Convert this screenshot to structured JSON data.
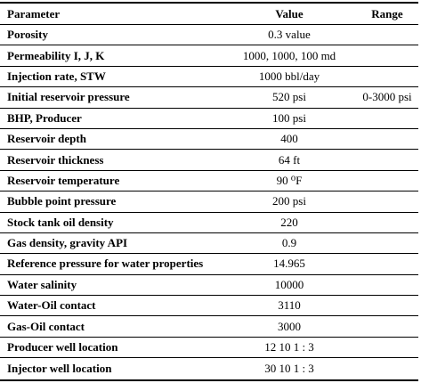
{
  "table": {
    "headers": {
      "parameter": "Parameter",
      "value": "Value",
      "range": "Range"
    },
    "rows": [
      {
        "parameter": "Porosity",
        "value": "0.3 value",
        "range": ""
      },
      {
        "parameter": "Permeability I, J, K",
        "value": "1000, 1000, 100 md",
        "range": ""
      },
      {
        "parameter": "Injection rate, STW",
        "value": "1000 bbl/day",
        "range": ""
      },
      {
        "parameter": "Initial reservoir pressure",
        "value": "520 psi",
        "range": "0-3000 psi"
      },
      {
        "parameter": "BHP, Producer",
        "value": "100 psi",
        "range": ""
      },
      {
        "parameter": "Reservoir depth",
        "value": "400",
        "range": ""
      },
      {
        "parameter": "Reservoir thickness",
        "value": "64 ft",
        "range": ""
      },
      {
        "parameter": "Reservoir temperature",
        "value": "90 ⁰F",
        "range": ""
      },
      {
        "parameter": "Bubble point pressure",
        "value": "200 psi",
        "range": ""
      },
      {
        "parameter": "Stock tank oil density",
        "value": "220",
        "range": ""
      },
      {
        "parameter": "Gas density, gravity API",
        "value": "0.9",
        "range": ""
      },
      {
        "parameter": "Reference pressure for water properties",
        "value": "14.965",
        "range": ""
      },
      {
        "parameter": "Water salinity",
        "value": "10000",
        "range": ""
      },
      {
        "parameter": "Water-Oil contact",
        "value": "3110",
        "range": ""
      },
      {
        "parameter": "Gas-Oil contact",
        "value": "3000",
        "range": ""
      },
      {
        "parameter": "Producer well location",
        "value": "12 10 1 : 3",
        "range": ""
      },
      {
        "parameter": "Injector well location",
        "value": "30 10 1 : 3",
        "range": ""
      }
    ]
  }
}
